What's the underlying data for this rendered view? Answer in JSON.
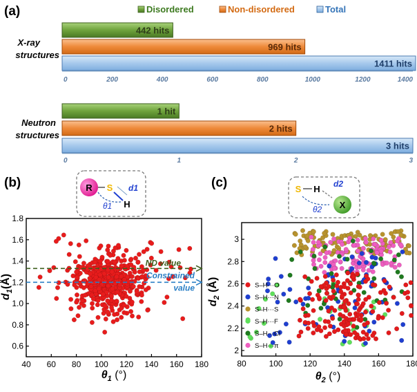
{
  "panel_labels": {
    "a": "(a)",
    "b": "(b)",
    "c": "(c)"
  },
  "chart_data": [
    {
      "type": "bar",
      "orientation": "horizontal",
      "title": "X-ray structures",
      "legend": [
        {
          "name": "Disordered",
          "color": "#5a8a2e"
        },
        {
          "name": "Non-disordered",
          "color": "#e8761e"
        },
        {
          "name": "Total",
          "color": "#4a86c6"
        }
      ],
      "series": [
        {
          "name": "Disordered",
          "value": 442,
          "label": "442 hits"
        },
        {
          "name": "Non-disordered",
          "value": 969,
          "label": "969 hits"
        },
        {
          "name": "Total",
          "value": 1411,
          "label": "1411 hits"
        }
      ],
      "xlim": [
        0,
        1400
      ],
      "xticks": [
        "0",
        "200",
        "400",
        "600",
        "800",
        "1000",
        "1200",
        "1400"
      ]
    },
    {
      "type": "bar",
      "orientation": "horizontal",
      "title": "Neutron structures",
      "series": [
        {
          "name": "Disordered",
          "value": 1,
          "label": "1 hit"
        },
        {
          "name": "Non-disordered",
          "value": 2,
          "label": "2 hits"
        },
        {
          "name": "Total",
          "value": 3,
          "label": "3 hits"
        }
      ],
      "xlim": [
        0,
        3
      ],
      "xticks": [
        "0",
        "1",
        "2",
        "3"
      ]
    },
    {
      "type": "scatter",
      "xlabel": "θ1 (°)",
      "ylabel": "d1(Å)",
      "xlim": [
        40,
        180
      ],
      "ylim": [
        0.5,
        1.8
      ],
      "xticks": [
        "40",
        "60",
        "80",
        "100",
        "120",
        "140",
        "160",
        "180"
      ],
      "yticks": [
        "0.6",
        "0.8",
        "1.0",
        "1.2",
        "1.4",
        "1.6",
        "1.8"
      ],
      "color": "#e81c1c",
      "reference_lines": [
        {
          "label": "ND value",
          "y": 1.33,
          "color": "#3d5f1e"
        },
        {
          "label": "Constrained value",
          "y": 1.2,
          "color": "#2a7fc6"
        }
      ],
      "inset_labels": {
        "r": "R",
        "s": "S",
        "h": "H",
        "d": "d1",
        "theta": "θ1"
      },
      "points_summary": {
        "count": 500,
        "x_center": 105,
        "y_center": 1.2
      }
    },
    {
      "type": "scatter",
      "xlabel": "θ2 (°)",
      "ylabel": "d2 (Å)",
      "xlim": [
        80,
        180
      ],
      "ylim": [
        1.95,
        3.15
      ],
      "xticks": [
        "80",
        "100",
        "120",
        "140",
        "160",
        "180"
      ],
      "yticks": [
        "2",
        "2.2",
        "2.4",
        "2.6",
        "2.8",
        "3"
      ],
      "inset_labels": {
        "s": "S",
        "h": "H",
        "x": "X",
        "d": "d2",
        "theta": "θ2"
      },
      "series": [
        {
          "name": "S–H···O",
          "color": "#e31a1c"
        },
        {
          "name": "S–H···N",
          "color": "#1f3fd0"
        },
        {
          "name": "S–H···S",
          "color": "#b8932e"
        },
        {
          "name": "S–H···F",
          "color": "#5ee05a"
        },
        {
          "name": "S–H···Cl",
          "color": "#1f7a1f"
        },
        {
          "name": "S–H···π",
          "color": "#ee5fc0"
        }
      ]
    }
  ]
}
